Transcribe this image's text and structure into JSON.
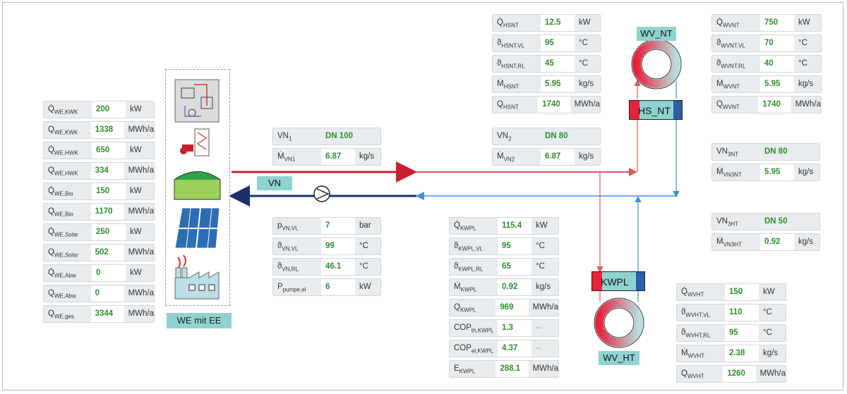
{
  "we": {
    "label": "WE mit EE",
    "rows": [
      {
        "sym": "Q̇",
        "sub": "WE,KWK",
        "value": "200",
        "unit": "kW"
      },
      {
        "sym": "Q",
        "sub": "WE,KWK",
        "value": "1338",
        "unit": "MWh/a"
      },
      {
        "sym": "Q̇",
        "sub": "WE,HWK",
        "value": "650",
        "unit": "kW"
      },
      {
        "sym": "Q",
        "sub": "WE,HWK",
        "value": "334",
        "unit": "MWh/a"
      },
      {
        "sym": "Q̇",
        "sub": "WE,Bio",
        "value": "150",
        "unit": "kW"
      },
      {
        "sym": "Q",
        "sub": "WE,Bio",
        "value": "1170",
        "unit": "MWh/a"
      },
      {
        "sym": "Q̇",
        "sub": "WE,Solar",
        "value": "250",
        "unit": "kW"
      },
      {
        "sym": "Q",
        "sub": "WE,Solar",
        "value": "502",
        "unit": "MWh/a"
      },
      {
        "sym": "Q̇",
        "sub": "WE,Abw",
        "value": "0",
        "unit": "kW"
      },
      {
        "sym": "Q",
        "sub": "WE,Abw",
        "value": "0",
        "unit": "MWh/a"
      },
      {
        "sym": "Q",
        "sub": "WE,ges",
        "value": "3344",
        "unit": "MWh/a"
      }
    ]
  },
  "vn1": {
    "rows": [
      {
        "sym": "VN",
        "sub": "1",
        "value": "DN 100",
        "unit": ""
      },
      {
        "sym": "Ṁ",
        "sub": "VN1",
        "value": "6.87",
        "unit": "kg/s"
      }
    ]
  },
  "vn2": {
    "rows": [
      {
        "sym": "VN",
        "sub": "2",
        "value": "DN 80",
        "unit": ""
      },
      {
        "sym": "Ṁ",
        "sub": "VN2",
        "value": "6.87",
        "unit": "kg/s"
      }
    ]
  },
  "vn3nt": {
    "rows": [
      {
        "sym": "VN",
        "sub": "3NT",
        "value": "DN 80",
        "unit": ""
      },
      {
        "sym": "Ṁ",
        "sub": "VN3NT",
        "value": "5.95",
        "unit": "kg/s"
      }
    ]
  },
  "vn3ht": {
    "rows": [
      {
        "sym": "VN",
        "sub": "3HT",
        "value": "DN 50",
        "unit": ""
      },
      {
        "sym": "Ṁ",
        "sub": "VN3HT",
        "value": "0.92",
        "unit": "kg/s"
      }
    ]
  },
  "pump": {
    "rows": [
      {
        "sym": "p",
        "sub": "VN,VL",
        "value": "7",
        "unit": "bar"
      },
      {
        "sym": "ϑ",
        "sub": "VN,VL",
        "value": "99",
        "unit": "°C"
      },
      {
        "sym": "ϑ",
        "sub": "VN,RL",
        "value": "46.1",
        "unit": "°C"
      },
      {
        "sym": "P",
        "sub": "pumpe,el",
        "value": "6",
        "unit": "kW"
      }
    ]
  },
  "hsnt": {
    "rows": [
      {
        "sym": "Q̇",
        "sub": "HSNT",
        "value": "12.5",
        "unit": "kW"
      },
      {
        "sym": "ϑ",
        "sub": "HSNT,VL",
        "value": "95",
        "unit": "°C"
      },
      {
        "sym": "ϑ",
        "sub": "HSNT,RL",
        "value": "45",
        "unit": "°C"
      },
      {
        "sym": "Ṁ",
        "sub": "HSNT",
        "value": "5.95",
        "unit": "kg/s"
      },
      {
        "sym": "Q",
        "sub": "HSNT",
        "value": "1740",
        "unit": "MWh/a"
      }
    ]
  },
  "wvnt": {
    "rows": [
      {
        "sym": "Q̇",
        "sub": "WVNT",
        "value": "750",
        "unit": "kW"
      },
      {
        "sym": "ϑ",
        "sub": "WVNT,VL",
        "value": "70",
        "unit": "°C"
      },
      {
        "sym": "ϑ",
        "sub": "WVNT,RL",
        "value": "40",
        "unit": "°C"
      },
      {
        "sym": "Ṁ",
        "sub": "WVNT",
        "value": "5.95",
        "unit": "kg/s"
      },
      {
        "sym": "Q",
        "sub": "WVNT",
        "value": "1740",
        "unit": "MWh/a"
      }
    ]
  },
  "kwpl": {
    "rows": [
      {
        "sym": "Q̇",
        "sub": "KWPL",
        "value": "115.4",
        "unit": "kW"
      },
      {
        "sym": "ϑ",
        "sub": "KWPL,VL",
        "value": "95",
        "unit": "°C"
      },
      {
        "sym": "ϑ",
        "sub": "KWPL,RL",
        "value": "65",
        "unit": "°C"
      },
      {
        "sym": "Ṁ",
        "sub": "KWPL",
        "value": "0.92",
        "unit": "kg/s"
      },
      {
        "sym": "Q",
        "sub": "KWPL",
        "value": "969",
        "unit": "MWh/a"
      },
      {
        "sym": "COP",
        "sub": "th,KWPL",
        "value": "1.3",
        "unit": "--"
      },
      {
        "sym": "COP",
        "sub": "el,KWPL",
        "value": "4.37",
        "unit": "--"
      },
      {
        "sym": "E",
        "sub": "KWPL",
        "value": "288.1",
        "unit": "MWh/a"
      }
    ]
  },
  "wvht": {
    "rows": [
      {
        "sym": "Q̇",
        "sub": "WVHT",
        "value": "150",
        "unit": "kW"
      },
      {
        "sym": "ϑ",
        "sub": "WVHT,VL",
        "value": "110",
        "unit": "°C"
      },
      {
        "sym": "ϑ",
        "sub": "WVHT,RL",
        "value": "95",
        "unit": "°C"
      },
      {
        "sym": "Ṁ",
        "sub": "WVHT",
        "value": "2.38",
        "unit": "kg/s"
      },
      {
        "sym": "Q",
        "sub": "WVHT",
        "value": "1260",
        "unit": "MWh/a"
      }
    ]
  },
  "labels": {
    "vn": "VN",
    "wv_nt": "WV_NT",
    "hs_nt": "HS_NT",
    "kwpl": "KWPL",
    "wv_ht": "WV_HT"
  },
  "colors": {
    "supply": "#c8202f",
    "return": "#1b2f6e",
    "return_light": "#3c8fdc",
    "supply_light": "#e05a5a",
    "accent": "#8fd3d0",
    "value_green": "#2f8f2f"
  }
}
